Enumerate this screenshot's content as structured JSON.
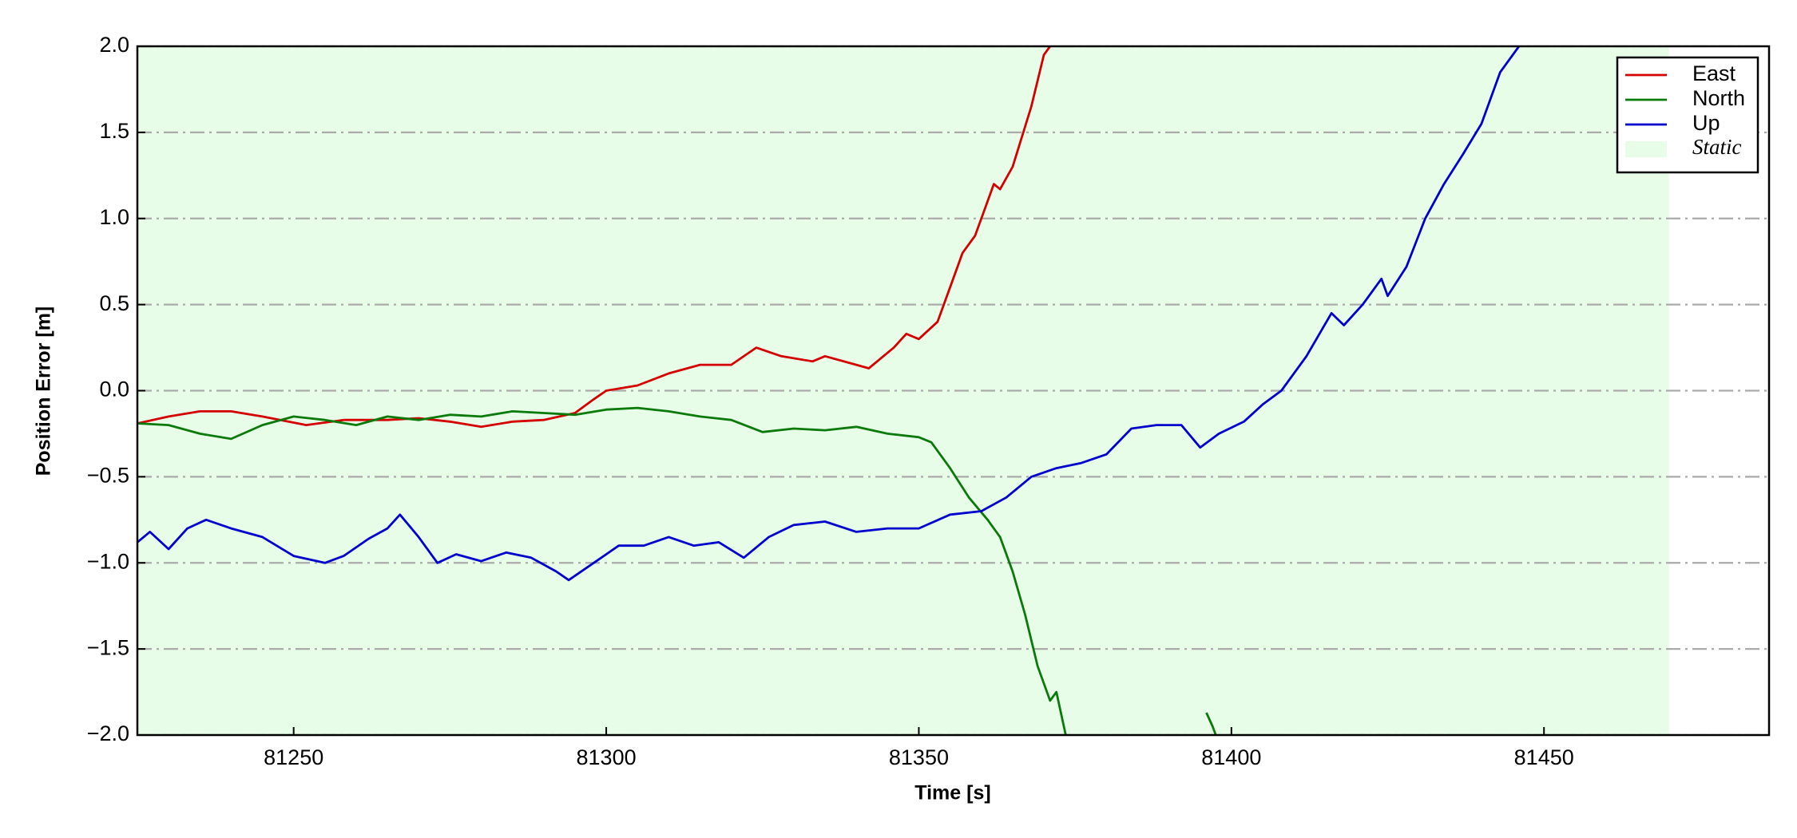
{
  "chart_data": {
    "type": "line",
    "xlabel": "Time [s]",
    "ylabel": "Position Error [m]",
    "xlim": [
      81225,
      81486
    ],
    "xticks": [
      81250,
      81300,
      81350,
      81400,
      81450
    ],
    "ylim": [
      -2,
      2
    ],
    "yticks": [
      {
        "value": -2,
        "label": "−2.0"
      },
      {
        "value": -1.5,
        "label": "−1.5"
      },
      {
        "value": -1,
        "label": "−1.0"
      },
      {
        "value": -0.5,
        "label": "−0.5"
      },
      {
        "value": 0,
        "label": "0.0"
      },
      {
        "value": 0.5,
        "label": "0.5"
      },
      {
        "value": 1,
        "label": "1.0"
      },
      {
        "value": 1.5,
        "label": "1.5"
      },
      {
        "value": 2,
        "label": "2.0"
      }
    ],
    "grid": true,
    "legend": "upper right",
    "shaded_region": {
      "label": "Static",
      "x": [
        81225,
        81470
      ],
      "color": "#e8fde8"
    },
    "series": [
      {
        "name": "East",
        "color": "#d40000",
        "x": [
          81225,
          81230,
          81235,
          81240,
          81245,
          81252,
          81258,
          81265,
          81270,
          81275,
          81280,
          81285,
          81290,
          81295,
          81298,
          81300,
          81305,
          81310,
          81315,
          81320,
          81324,
          81328,
          81333,
          81335,
          81340,
          81342,
          81346,
          81348,
          81350,
          81353,
          81355,
          81357,
          81359,
          81362,
          81363,
          81365,
          81368,
          81370,
          81371
        ],
        "values": [
          -0.19,
          -0.15,
          -0.12,
          -0.12,
          -0.15,
          -0.2,
          -0.17,
          -0.17,
          -0.16,
          -0.18,
          -0.21,
          -0.18,
          -0.17,
          -0.13,
          -0.05,
          0.0,
          0.03,
          0.1,
          0.15,
          0.15,
          0.25,
          0.2,
          0.17,
          0.2,
          0.15,
          0.13,
          0.25,
          0.33,
          0.3,
          0.4,
          0.6,
          0.8,
          0.9,
          1.2,
          1.17,
          1.3,
          1.65,
          1.95,
          2.0
        ]
      },
      {
        "name": "North",
        "color": "#0a7a0a",
        "x": [
          81225,
          81230,
          81235,
          81240,
          81245,
          81250,
          81255,
          81260,
          81265,
          81270,
          81275,
          81280,
          81285,
          81290,
          81295,
          81300,
          81305,
          81310,
          81315,
          81320,
          81325,
          81330,
          81335,
          81340,
          81345,
          81350,
          81352,
          81355,
          81358,
          81361,
          81363,
          81365,
          81367,
          81369,
          81371,
          81372,
          81373.5,
          81385,
          81396,
          81397,
          81398
        ],
        "values": [
          -0.19,
          -0.2,
          -0.25,
          -0.28,
          -0.2,
          -0.15,
          -0.17,
          -0.2,
          -0.15,
          -0.17,
          -0.14,
          -0.15,
          -0.12,
          -0.13,
          -0.14,
          -0.11,
          -0.1,
          -0.12,
          -0.15,
          -0.17,
          -0.24,
          -0.22,
          -0.23,
          -0.21,
          -0.25,
          -0.27,
          -0.3,
          -0.45,
          -0.62,
          -0.75,
          -0.85,
          -1.05,
          -1.3,
          -1.6,
          -1.8,
          -1.75,
          -2.0,
          null,
          -1.87,
          -1.95,
          -2.05
        ]
      },
      {
        "name": "Up",
        "color": "#0000cc",
        "x": [
          81225,
          81227,
          81230,
          81233,
          81236,
          81240,
          81245,
          81250,
          81255,
          81258,
          81262,
          81265,
          81267,
          81270,
          81273,
          81276,
          81280,
          81284,
          81288,
          81292,
          81294,
          81298,
          81302,
          81306,
          81310,
          81314,
          81318,
          81322,
          81326,
          81330,
          81335,
          81340,
          81345,
          81350,
          81355,
          81360,
          81364,
          81368,
          81372,
          81376,
          81380,
          81384,
          81388,
          81392,
          81395,
          81398,
          81402,
          81405,
          81408,
          81412,
          81416,
          81418,
          81421,
          81424,
          81425,
          81428,
          81431,
          81434,
          81437,
          81440,
          81443,
          81446
        ],
        "values": [
          -0.88,
          -0.82,
          -0.92,
          -0.8,
          -0.75,
          -0.8,
          -0.85,
          -0.96,
          -1.0,
          -0.96,
          -0.86,
          -0.8,
          -0.72,
          -0.85,
          -1.0,
          -0.95,
          -0.99,
          -0.94,
          -0.97,
          -1.05,
          -1.1,
          -1.0,
          -0.9,
          -0.9,
          -0.85,
          -0.9,
          -0.88,
          -0.97,
          -0.85,
          -0.78,
          -0.76,
          -0.82,
          -0.8,
          -0.8,
          -0.72,
          -0.7,
          -0.62,
          -0.5,
          -0.45,
          -0.42,
          -0.37,
          -0.22,
          -0.2,
          -0.2,
          -0.33,
          -0.25,
          -0.18,
          -0.08,
          0.0,
          0.2,
          0.45,
          0.38,
          0.5,
          0.65,
          0.55,
          0.72,
          1.0,
          1.2,
          1.37,
          1.55,
          1.85,
          2.0
        ]
      }
    ]
  }
}
